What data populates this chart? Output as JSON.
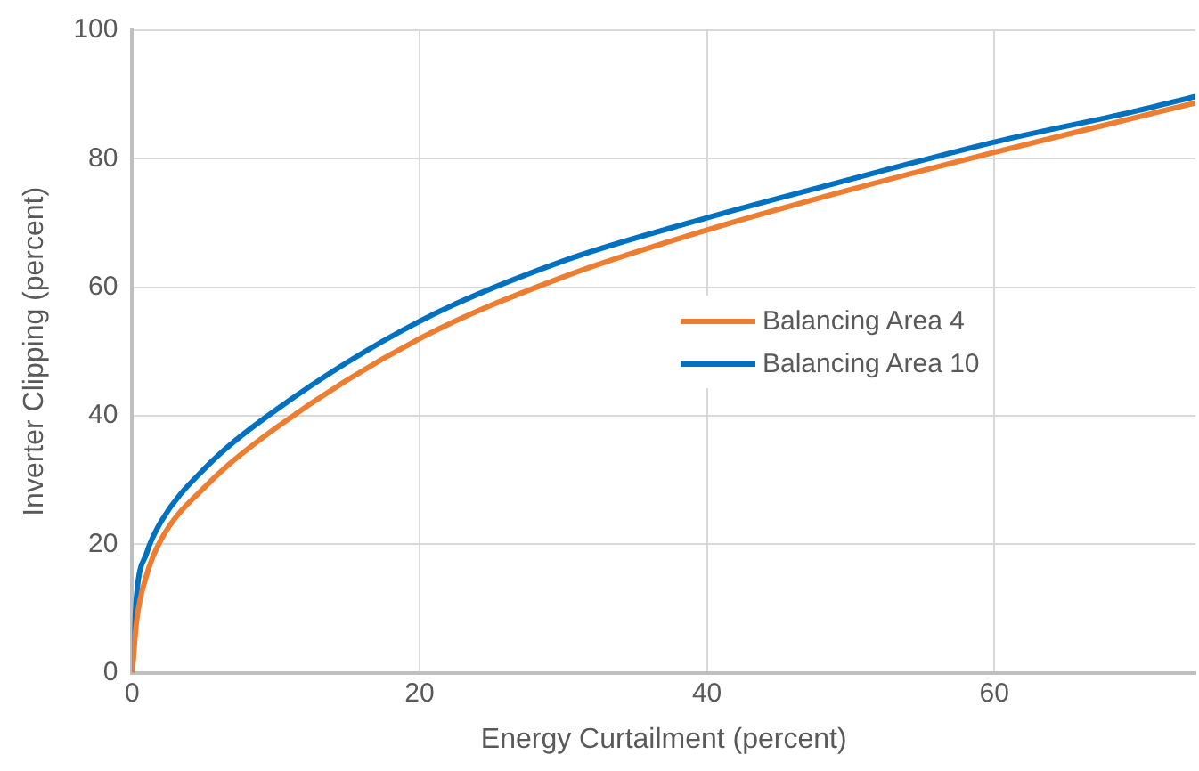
{
  "chart_data": {
    "type": "line",
    "xlabel": "Energy Curtailment (percent)",
    "ylabel": "Inverter Clipping (percent)",
    "x": [
      0,
      0.3,
      1,
      2,
      5,
      10,
      20,
      30,
      40,
      50,
      60,
      70,
      74
    ],
    "series": [
      {
        "name": "Balancing Area 4",
        "color": "#ed7d31",
        "values": [
          0,
          8,
          15.2,
          20.7,
          28.8,
          38.1,
          52,
          61.6,
          68.9,
          75.2,
          81,
          86.5,
          88.7
        ]
      },
      {
        "name": "Balancing Area 10",
        "color": "#0070c0",
        "values": [
          0,
          12,
          18.6,
          23.5,
          31.7,
          40.9,
          54.7,
          64.1,
          70.8,
          76.8,
          82.6,
          87.5,
          89.7
        ]
      }
    ],
    "xlim": [
      0,
      74
    ],
    "xticks": [
      0,
      20,
      40,
      60
    ],
    "ylim": [
      0,
      100
    ],
    "yticks": [
      0,
      20,
      40,
      60,
      80,
      100
    ],
    "grid": true,
    "legend": "right",
    "marker": "none",
    "line_style": "solid"
  }
}
